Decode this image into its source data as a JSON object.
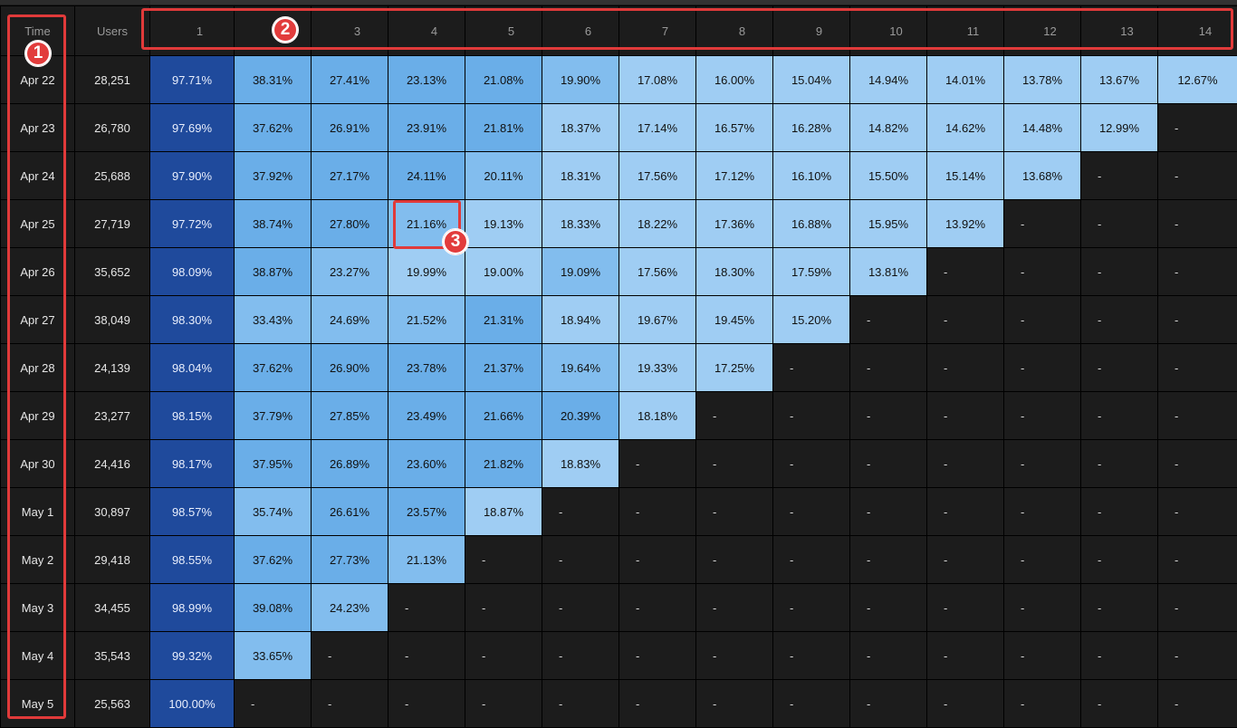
{
  "header": {
    "time_label": "Time",
    "users_label": "Users",
    "periods": [
      "1",
      "2",
      "3",
      "4",
      "5",
      "6",
      "7",
      "8",
      "9",
      "10",
      "11",
      "12",
      "13",
      "14"
    ]
  },
  "rows": [
    {
      "time": "Apr 22",
      "users": "28,251",
      "cells": [
        "97.71%",
        "38.31%",
        "27.41%",
        "23.13%",
        "21.08%",
        "19.90%",
        "17.08%",
        "16.00%",
        "15.04%",
        "14.94%",
        "14.01%",
        "13.78%",
        "13.67%",
        "12.67%"
      ]
    },
    {
      "time": "Apr 23",
      "users": "26,780",
      "cells": [
        "97.69%",
        "37.62%",
        "26.91%",
        "23.91%",
        "21.81%",
        "18.37%",
        "17.14%",
        "16.57%",
        "16.28%",
        "14.82%",
        "14.62%",
        "14.48%",
        "12.99%",
        "-"
      ]
    },
    {
      "time": "Apr 24",
      "users": "25,688",
      "cells": [
        "97.90%",
        "37.92%",
        "27.17%",
        "24.11%",
        "20.11%",
        "18.31%",
        "17.56%",
        "17.12%",
        "16.10%",
        "15.50%",
        "15.14%",
        "13.68%",
        "-",
        "-"
      ]
    },
    {
      "time": "Apr 25",
      "users": "27,719",
      "cells": [
        "97.72%",
        "38.74%",
        "27.80%",
        "21.16%",
        "19.13%",
        "18.33%",
        "18.22%",
        "17.36%",
        "16.88%",
        "15.95%",
        "13.92%",
        "-",
        "-",
        "-"
      ]
    },
    {
      "time": "Apr 26",
      "users": "35,652",
      "cells": [
        "98.09%",
        "38.87%",
        "23.27%",
        "19.99%",
        "19.00%",
        "19.09%",
        "17.56%",
        "18.30%",
        "17.59%",
        "13.81%",
        "-",
        "-",
        "-",
        "-"
      ]
    },
    {
      "time": "Apr 27",
      "users": "38,049",
      "cells": [
        "98.30%",
        "33.43%",
        "24.69%",
        "21.52%",
        "21.31%",
        "18.94%",
        "19.67%",
        "19.45%",
        "15.20%",
        "-",
        "-",
        "-",
        "-",
        "-"
      ]
    },
    {
      "time": "Apr 28",
      "users": "24,139",
      "cells": [
        "98.04%",
        "37.62%",
        "26.90%",
        "23.78%",
        "21.37%",
        "19.64%",
        "19.33%",
        "17.25%",
        "-",
        "-",
        "-",
        "-",
        "-",
        "-"
      ]
    },
    {
      "time": "Apr 29",
      "users": "23,277",
      "cells": [
        "98.15%",
        "37.79%",
        "27.85%",
        "23.49%",
        "21.66%",
        "20.39%",
        "18.18%",
        "-",
        "-",
        "-",
        "-",
        "-",
        "-",
        "-"
      ]
    },
    {
      "time": "Apr 30",
      "users": "24,416",
      "cells": [
        "98.17%",
        "37.95%",
        "26.89%",
        "23.60%",
        "21.82%",
        "18.83%",
        "-",
        "-",
        "-",
        "-",
        "-",
        "-",
        "-",
        "-"
      ]
    },
    {
      "time": "May 1",
      "users": "30,897",
      "cells": [
        "98.57%",
        "35.74%",
        "26.61%",
        "23.57%",
        "18.87%",
        "-",
        "-",
        "-",
        "-",
        "-",
        "-",
        "-",
        "-",
        "-"
      ]
    },
    {
      "time": "May 2",
      "users": "29,418",
      "cells": [
        "98.55%",
        "37.62%",
        "27.73%",
        "21.13%",
        "-",
        "-",
        "-",
        "-",
        "-",
        "-",
        "-",
        "-",
        "-",
        "-"
      ]
    },
    {
      "time": "May 3",
      "users": "34,455",
      "cells": [
        "98.99%",
        "39.08%",
        "24.23%",
        "-",
        "-",
        "-",
        "-",
        "-",
        "-",
        "-",
        "-",
        "-",
        "-",
        "-"
      ]
    },
    {
      "time": "May 4",
      "users": "35,543",
      "cells": [
        "99.32%",
        "33.65%",
        "-",
        "-",
        "-",
        "-",
        "-",
        "-",
        "-",
        "-",
        "-",
        "-",
        "-",
        "-"
      ]
    },
    {
      "time": "May 5",
      "users": "25,563",
      "cells": [
        "100.00%",
        "-",
        "-",
        "-",
        "-",
        "-",
        "-",
        "-",
        "-",
        "-",
        "-",
        "-",
        "-",
        "-"
      ]
    }
  ],
  "annotations": [
    "1",
    "2",
    "3"
  ],
  "colors": {
    "background": "#1c1c1c",
    "first_period": "#1f4a9c",
    "high": "#6aaee8",
    "mid": "#82bdee",
    "low": "#9fcdf3",
    "annotation": "#e03a3a"
  }
}
